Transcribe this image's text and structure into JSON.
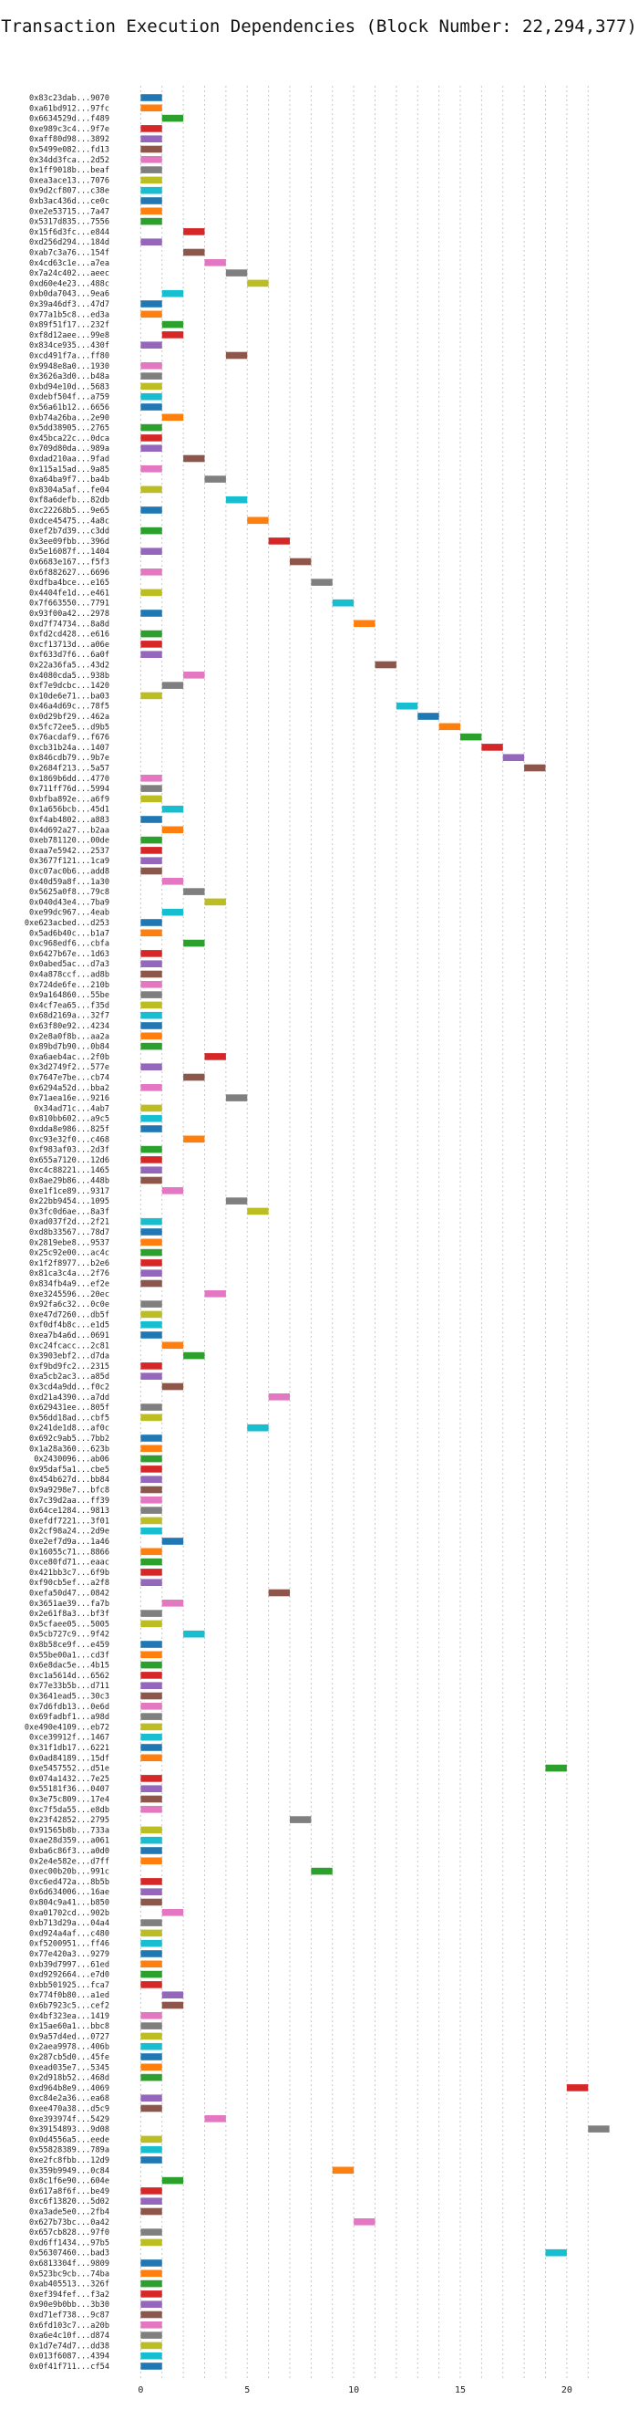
{
  "chart_data": {
    "type": "bar",
    "orientation": "horizontal",
    "title": "Transaction Execution Dependencies (Block Number: 22,294,377)",
    "xlabel": "",
    "ylabel": "",
    "xlim": [
      -1,
      23
    ],
    "xticks": [
      0,
      5,
      10,
      15,
      20
    ],
    "grid": true,
    "bar_length": 1,
    "colors": [
      "#1f77b4",
      "#ff7f0e",
      "#2ca02c",
      "#d62728",
      "#9467bd",
      "#8c564b",
      "#e377c2",
      "#7f7f7f",
      "#bcbd22",
      "#17becf"
    ],
    "transactions": [
      {
        "hash": "0x83c23dab...9070",
        "start": 0
      },
      {
        "hash": "0xa61bd912...97fc",
        "start": 0
      },
      {
        "hash": "0x6634529d...f489",
        "start": 1
      },
      {
        "hash": "0xe989c3c4...9f7e",
        "start": 0
      },
      {
        "hash": "0xaff80d98...3892",
        "start": 0
      },
      {
        "hash": "0x5499e082...fd13",
        "start": 0
      },
      {
        "hash": "0x34dd3fca...2d52",
        "start": 0
      },
      {
        "hash": "0x1ff9018b...beaf",
        "start": 0
      },
      {
        "hash": "0xea3ace13...7076",
        "start": 0
      },
      {
        "hash": "0x9d2cf807...c38e",
        "start": 0
      },
      {
        "hash": "0xb3ac436d...ce0c",
        "start": 0
      },
      {
        "hash": "0xe2e53715...7a47",
        "start": 0
      },
      {
        "hash": "0x5317d835...7556",
        "start": 0
      },
      {
        "hash": "0x15f6d3fc...e844",
        "start": 2
      },
      {
        "hash": "0xd256d294...184d",
        "start": 0
      },
      {
        "hash": "0xab7c3a76...154f",
        "start": 2
      },
      {
        "hash": "0x4cd63c1e...a7ea",
        "start": 3
      },
      {
        "hash": "0x7a24c402...aeec",
        "start": 4
      },
      {
        "hash": "0xd60e4e23...488c",
        "start": 5
      },
      {
        "hash": "0xb0da7043...9ea6",
        "start": 1
      },
      {
        "hash": "0x39a46df3...47d7",
        "start": 0
      },
      {
        "hash": "0x77a1b5c8...ed3a",
        "start": 0
      },
      {
        "hash": "0x89f51f17...232f",
        "start": 1
      },
      {
        "hash": "0xf8d12aee...99e8",
        "start": 1
      },
      {
        "hash": "0x834ce935...430f",
        "start": 0
      },
      {
        "hash": "0xcd491f7a...ff80",
        "start": 4
      },
      {
        "hash": "0x9948e8a0...1930",
        "start": 0
      },
      {
        "hash": "0x3626a3d0...b48a",
        "start": 0
      },
      {
        "hash": "0xbd94e10d...5683",
        "start": 0
      },
      {
        "hash": "0xdebf504f...a759",
        "start": 0
      },
      {
        "hash": "0x56a61b12...6656",
        "start": 0
      },
      {
        "hash": "0xb74a26ba...2e90",
        "start": 1
      },
      {
        "hash": "0x5dd38905...2765",
        "start": 0
      },
      {
        "hash": "0x45bca22c...0dca",
        "start": 0
      },
      {
        "hash": "0x709d80da...989a",
        "start": 0
      },
      {
        "hash": "0xdad210aa...9fad",
        "start": 2
      },
      {
        "hash": "0x115a15ad...9a85",
        "start": 0
      },
      {
        "hash": "0xa64ba9f7...ba4b",
        "start": 3
      },
      {
        "hash": "0x8304a5af...fe04",
        "start": 0
      },
      {
        "hash": "0xf8a6defb...82db",
        "start": 4
      },
      {
        "hash": "0xc22268b5...9e65",
        "start": 0
      },
      {
        "hash": "0xdce45475...4a8c",
        "start": 5
      },
      {
        "hash": "0xef2b7d39...c3dd",
        "start": 0
      },
      {
        "hash": "0x3ee09fbb...396d",
        "start": 6
      },
      {
        "hash": "0x5e16087f...1404",
        "start": 0
      },
      {
        "hash": "0x6683e167...f5f3",
        "start": 7
      },
      {
        "hash": "0x6f882627...6696",
        "start": 0
      },
      {
        "hash": "0xdfba4bce...e165",
        "start": 8
      },
      {
        "hash": "0x4404fe1d...e461",
        "start": 0
      },
      {
        "hash": "0x7f663550...7791",
        "start": 9
      },
      {
        "hash": "0x93f00a42...2978",
        "start": 0
      },
      {
        "hash": "0xd7f74734...8a8d",
        "start": 10
      },
      {
        "hash": "0xfd2cd428...e616",
        "start": 0
      },
      {
        "hash": "0xcf13713d...a06e",
        "start": 0
      },
      {
        "hash": "0xf633d7f6...6a0f",
        "start": 0
      },
      {
        "hash": "0x22a36fa5...43d2",
        "start": 11
      },
      {
        "hash": "0x4080cda5...938b",
        "start": 2
      },
      {
        "hash": "0xf7e9dcbc...1420",
        "start": 1
      },
      {
        "hash": "0x10de6e71...ba03",
        "start": 0
      },
      {
        "hash": "0x46a4d69c...78f5",
        "start": 12
      },
      {
        "hash": "0x0d29bf29...462a",
        "start": 13
      },
      {
        "hash": "0x5fc72ee5...d9b5",
        "start": 14
      },
      {
        "hash": "0x76acdaf9...f676",
        "start": 15
      },
      {
        "hash": "0xcb31b24a...1407",
        "start": 16
      },
      {
        "hash": "0x846cdb79...9b7e",
        "start": 17
      },
      {
        "hash": "0x2684f213...5a57",
        "start": 18
      },
      {
        "hash": "0x1869b6dd...4770",
        "start": 0
      },
      {
        "hash": "0x711ff76d...5994",
        "start": 0
      },
      {
        "hash": "0xbfba892e...a6f9",
        "start": 0
      },
      {
        "hash": "0x1a656bcb...45d1",
        "start": 1
      },
      {
        "hash": "0xf4ab4802...a883",
        "start": 0
      },
      {
        "hash": "0x4d692a27...b2aa",
        "start": 1
      },
      {
        "hash": "0xeb781120...00de",
        "start": 0
      },
      {
        "hash": "0xaa7e5942...2537",
        "start": 0
      },
      {
        "hash": "0x3677f121...1ca9",
        "start": 0
      },
      {
        "hash": "0xc07ac0b6...add8",
        "start": 0
      },
      {
        "hash": "0x40d59a8f...1a30",
        "start": 1
      },
      {
        "hash": "0x5625a0f8...79c8",
        "start": 2
      },
      {
        "hash": "0x040d43e4...7ba9",
        "start": 3
      },
      {
        "hash": "0xe99dc967...4eab",
        "start": 1
      },
      {
        "hash": "0xe623acbed...d253",
        "start": 0
      },
      {
        "hash": "0x5ad6b40c...b1a7",
        "start": 0
      },
      {
        "hash": "0xc968edf6...cbfa",
        "start": 2
      },
      {
        "hash": "0x6427b67e...1d63",
        "start": 0
      },
      {
        "hash": "0x0abed5ac...d7a3",
        "start": 0
      },
      {
        "hash": "0x4a878ccf...ad8b",
        "start": 0
      },
      {
        "hash": "0x724de6fe...210b",
        "start": 0
      },
      {
        "hash": "0x9a164860...55be",
        "start": 0
      },
      {
        "hash": "0x4cf7ea65...f35d",
        "start": 0
      },
      {
        "hash": "0x68d2169a...32f7",
        "start": 0
      },
      {
        "hash": "0x63f80e92...4234",
        "start": 0
      },
      {
        "hash": "0x2e8a0f8b...aa2a",
        "start": 0
      },
      {
        "hash": "0x89bd7b90...0b84",
        "start": 0
      },
      {
        "hash": "0xa6aeb4ac...2f0b",
        "start": 3
      },
      {
        "hash": "0x3d2749f2...577e",
        "start": 0
      },
      {
        "hash": "0x7647e7be...cb74",
        "start": 2
      },
      {
        "hash": "0x6294a52d...bba2",
        "start": 0
      },
      {
        "hash": "0x71aea16e...9216",
        "start": 4
      },
      {
        "hash": "0x34ad71c...4ab7",
        "start": 0
      },
      {
        "hash": "0x810bb602...a9c5",
        "start": 0
      },
      {
        "hash": "0xdda8e986...825f",
        "start": 0
      },
      {
        "hash": "0xc93e32f0...c468",
        "start": 2
      },
      {
        "hash": "0xf983af03...2d3f",
        "start": 0
      },
      {
        "hash": "0x655a7120...12d6",
        "start": 0
      },
      {
        "hash": "0xc4c88221...1465",
        "start": 0
      },
      {
        "hash": "0x8ae29b86...448b",
        "start": 0
      },
      {
        "hash": "0xe1f1ce89...9317",
        "start": 1
      },
      {
        "hash": "0x22bb9454...1095",
        "start": 4
      },
      {
        "hash": "0x3fc0d6ae...8a3f",
        "start": 5
      },
      {
        "hash": "0xad037f2d...2f21",
        "start": 0
      },
      {
        "hash": "0xd8b33567...78d7",
        "start": 0
      },
      {
        "hash": "0x2819ebe8...9537",
        "start": 0
      },
      {
        "hash": "0x25c92e00...ac4c",
        "start": 0
      },
      {
        "hash": "0x1f2f8977...b2e6",
        "start": 0
      },
      {
        "hash": "0x81ca3c4a...2f76",
        "start": 0
      },
      {
        "hash": "0x834fb4a9...ef2e",
        "start": 0
      },
      {
        "hash": "0xe3245596...20ec",
        "start": 3
      },
      {
        "hash": "0x92fa6c32...0c0e",
        "start": 0
      },
      {
        "hash": "0xe47d7260...db5f",
        "start": 0
      },
      {
        "hash": "0xf0df4b8c...e1d5",
        "start": 0
      },
      {
        "hash": "0xea7b4a6d...0691",
        "start": 0
      },
      {
        "hash": "0xc24fcacc...2c81",
        "start": 1
      },
      {
        "hash": "0x3903ebf2...d7da",
        "start": 2
      },
      {
        "hash": "0xf9bd9fc2...2315",
        "start": 0
      },
      {
        "hash": "0xa5cb2ac3...a85d",
        "start": 0
      },
      {
        "hash": "0x3cd4a9dd...f0c2",
        "start": 1
      },
      {
        "hash": "0xd21a4390...a7dd",
        "start": 6
      },
      {
        "hash": "0x629431ee...805f",
        "start": 0
      },
      {
        "hash": "0x56dd18ad...cbf5",
        "start": 0
      },
      {
        "hash": "0x241de1d8...af0c",
        "start": 5
      },
      {
        "hash": "0x692c9ab5...7bb2",
        "start": 0
      },
      {
        "hash": "0x1a28a360...623b",
        "start": 0
      },
      {
        "hash": "0x2430096...ab06",
        "start": 0
      },
      {
        "hash": "0x95daf5a1...cbe5",
        "start": 0
      },
      {
        "hash": "0x454b627d...bb84",
        "start": 0
      },
      {
        "hash": "0x9a9298e7...bfc8",
        "start": 0
      },
      {
        "hash": "0x7c39d2aa...ff39",
        "start": 0
      },
      {
        "hash": "0x64ce1284...9813",
        "start": 0
      },
      {
        "hash": "0xefdf7221...3f01",
        "start": 0
      },
      {
        "hash": "0x2cf98a24...2d9e",
        "start": 0
      },
      {
        "hash": "0xe2ef7d9a...1a46",
        "start": 1
      },
      {
        "hash": "0x16055c71...8866",
        "start": 0
      },
      {
        "hash": "0xce80fd71...eaac",
        "start": 0
      },
      {
        "hash": "0x421bb3c7...6f9b",
        "start": 0
      },
      {
        "hash": "0xf90cb5ef...a2f8",
        "start": 0
      },
      {
        "hash": "0xefa50d47...0842",
        "start": 6
      },
      {
        "hash": "0x3651ae39...fa7b",
        "start": 1
      },
      {
        "hash": "0x2e61f8a3...bf3f",
        "start": 0
      },
      {
        "hash": "0x5cfaee05...5005",
        "start": 0
      },
      {
        "hash": "0x5cb727c9...9f42",
        "start": 2
      },
      {
        "hash": "0x8b58ce9f...e459",
        "start": 0
      },
      {
        "hash": "0x55be00a1...cd3f",
        "start": 0
      },
      {
        "hash": "0x6e8dac5e...4b15",
        "start": 0
      },
      {
        "hash": "0xc1a5614d...6562",
        "start": 0
      },
      {
        "hash": "0x77e33b5b...d711",
        "start": 0
      },
      {
        "hash": "0x3641ead5...30c3",
        "start": 0
      },
      {
        "hash": "0x7d6fdb13...0e6d",
        "start": 0
      },
      {
        "hash": "0x69fadbf1...a98d",
        "start": 0
      },
      {
        "hash": "0xe490e4109...eb72",
        "start": 0
      },
      {
        "hash": "0xce39912f...1467",
        "start": 0
      },
      {
        "hash": "0x31f1db17...6221",
        "start": 0
      },
      {
        "hash": "0x0ad84189...15df",
        "start": 0
      },
      {
        "hash": "0xe5457552...d51e",
        "start": 19
      },
      {
        "hash": "0x074a1432...7e25",
        "start": 0
      },
      {
        "hash": "0x55181f36...0407",
        "start": 0
      },
      {
        "hash": "0x3e75c809...17e4",
        "start": 0
      },
      {
        "hash": "0xc7f5da55...e8db",
        "start": 0
      },
      {
        "hash": "0x23f42852...2795",
        "start": 7
      },
      {
        "hash": "0x91565b8b...733a",
        "start": 0
      },
      {
        "hash": "0xae28d359...a061",
        "start": 0
      },
      {
        "hash": "0xba6c86f3...a0d0",
        "start": 0
      },
      {
        "hash": "0x2e4e582e...d7ff",
        "start": 0
      },
      {
        "hash": "0xec00b20b...991c",
        "start": 8
      },
      {
        "hash": "0xc6ed472a...8b5b",
        "start": 0
      },
      {
        "hash": "0x6d634006...16ae",
        "start": 0
      },
      {
        "hash": "0x804c9a41...b850",
        "start": 0
      },
      {
        "hash": "0xa01702cd...902b",
        "start": 1
      },
      {
        "hash": "0xb713d29a...04a4",
        "start": 0
      },
      {
        "hash": "0xd924a4af...c480",
        "start": 0
      },
      {
        "hash": "0xf5200951...ff46",
        "start": 0
      },
      {
        "hash": "0x77e420a3...9279",
        "start": 0
      },
      {
        "hash": "0xb39d7997...61ed",
        "start": 0
      },
      {
        "hash": "0xd9292664...e7d0",
        "start": 0
      },
      {
        "hash": "0xbb501925...fca7",
        "start": 0
      },
      {
        "hash": "0x774f0b80...a1ed",
        "start": 1
      },
      {
        "hash": "0x6b7923c5...cef2",
        "start": 1
      },
      {
        "hash": "0x4bf323ea...1419",
        "start": 0
      },
      {
        "hash": "0x15ae60a1...bbc8",
        "start": 0
      },
      {
        "hash": "0x9a57d4ed...0727",
        "start": 0
      },
      {
        "hash": "0x2aea9978...406b",
        "start": 0
      },
      {
        "hash": "0x287cb5d0...45fe",
        "start": 0
      },
      {
        "hash": "0xead035e7...5345",
        "start": 0
      },
      {
        "hash": "0x2d918b52...468d",
        "start": 0
      },
      {
        "hash": "0xd964b8e9...4069",
        "start": 20
      },
      {
        "hash": "0xc84e2a36...ea68",
        "start": 0
      },
      {
        "hash": "0xee470a38...d5c9",
        "start": 0
      },
      {
        "hash": "0xe393974f...5429",
        "start": 3
      },
      {
        "hash": "0x39154893...9d08",
        "start": 21
      },
      {
        "hash": "0x0d4556a5...eede",
        "start": 0
      },
      {
        "hash": "0x55828389...789a",
        "start": 0
      },
      {
        "hash": "0xe2fc8fbb...12d9",
        "start": 0
      },
      {
        "hash": "0x359b9949...0c84",
        "start": 9
      },
      {
        "hash": "0x8c1f6e90...604e",
        "start": 1
      },
      {
        "hash": "0x617a8f6f...be49",
        "start": 0
      },
      {
        "hash": "0xc6f13820...5d02",
        "start": 0
      },
      {
        "hash": "0xa3ade5e0...2fb4",
        "start": 0
      },
      {
        "hash": "0x627b73bc...0a42",
        "start": 10
      },
      {
        "hash": "0x657cb828...97f0",
        "start": 0
      },
      {
        "hash": "0xd6ff1434...97b5",
        "start": 0
      },
      {
        "hash": "0x56307460...bad3",
        "start": 19
      },
      {
        "hash": "0x6813304f...9809",
        "start": 0
      },
      {
        "hash": "0x523bc9cb...74ba",
        "start": 0
      },
      {
        "hash": "0xab405513...326f",
        "start": 0
      },
      {
        "hash": "0xef394fef...f3a2",
        "start": 0
      },
      {
        "hash": "0x90e9b0bb...3b30",
        "start": 0
      },
      {
        "hash": "0xd71ef738...9c87",
        "start": 0
      },
      {
        "hash": "0x6fd103c7...a20b",
        "start": 0
      },
      {
        "hash": "0xa6e4c10f...d874",
        "start": 0
      },
      {
        "hash": "0x1d7e74d7...dd38",
        "start": 0
      },
      {
        "hash": "0x013f6087...4394",
        "start": 0
      },
      {
        "hash": "0x0f41f711...cf54",
        "start": 0
      }
    ]
  }
}
